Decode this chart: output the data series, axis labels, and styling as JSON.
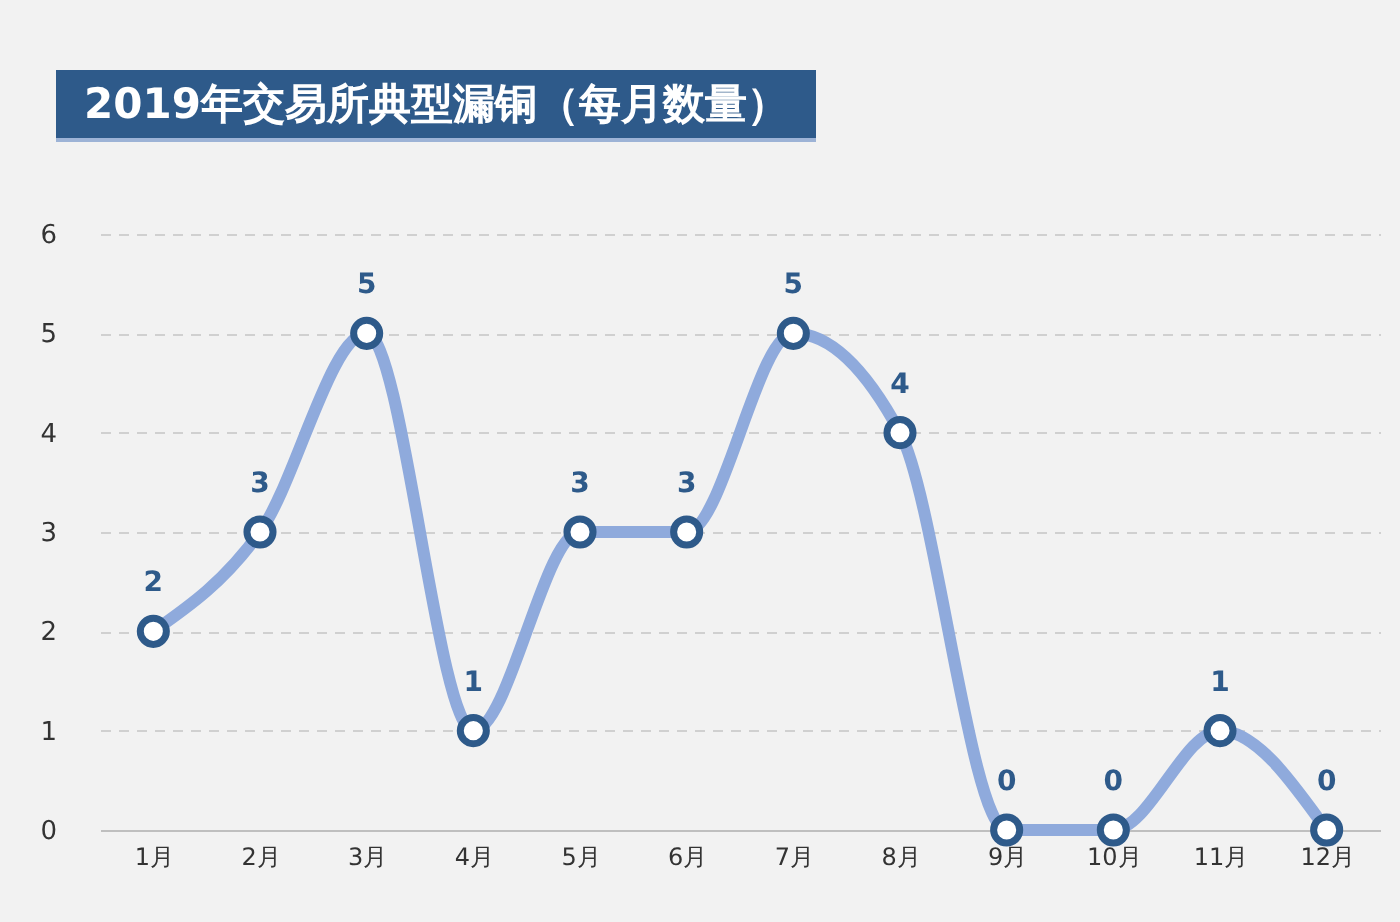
{
  "chart_data": {
    "type": "line",
    "title": "2019年交易所典型漏铜（每月数量）",
    "categories": [
      "1月",
      "2月",
      "3月",
      "4月",
      "5月",
      "6月",
      "7月",
      "8月",
      "9月",
      "10月",
      "11月",
      "12月"
    ],
    "series": [
      {
        "color": "#8faadc",
        "values": [
          2,
          3,
          5,
          1,
          3,
          3,
          5,
          4,
          0,
          0,
          1,
          0
        ]
      }
    ],
    "ylim": [
      0,
      6
    ],
    "yticks": [
      0,
      1,
      2,
      3,
      4,
      5,
      6
    ],
    "grid": "y",
    "marker": "circle",
    "line_style": "solid",
    "data_labels": true
  }
}
